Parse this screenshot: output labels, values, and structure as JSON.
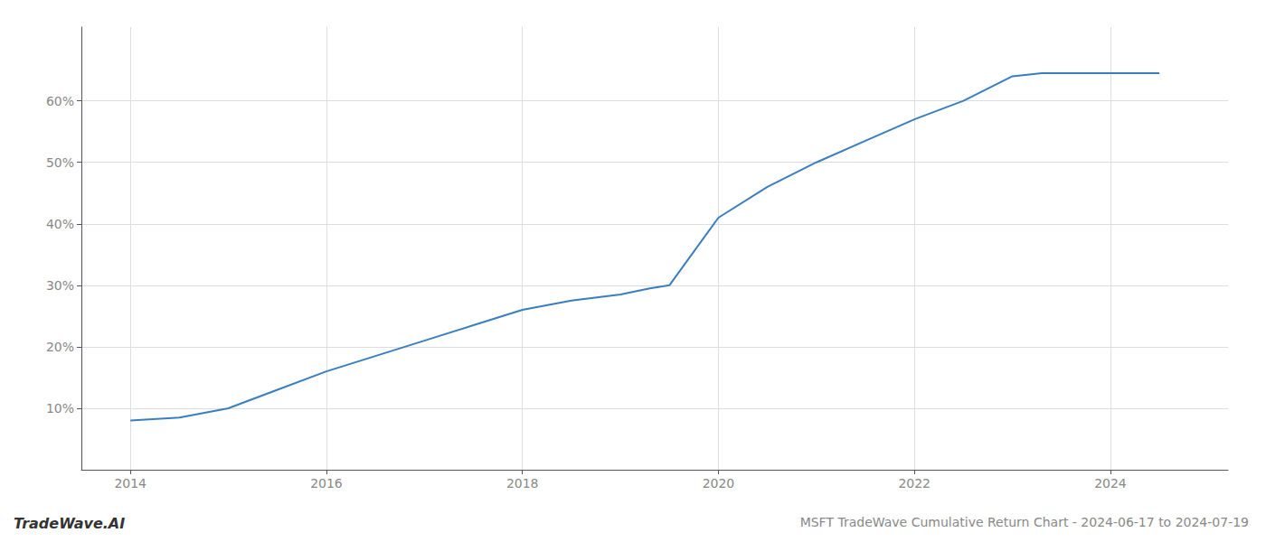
{
  "chart_data": {
    "type": "line",
    "title": "MSFT TradeWave Cumulative Return Chart - 2024-06-17 to 2024-07-19",
    "annotations": [
      "TradeWave.AI"
    ],
    "x": [
      2014.0,
      2014.5,
      2015.0,
      2015.5,
      2016.0,
      2016.5,
      2017.0,
      2017.5,
      2018.0,
      2018.5,
      2019.0,
      2019.3,
      2019.5,
      2020.0,
      2020.5,
      2021.0,
      2021.5,
      2022.0,
      2022.5,
      2023.0,
      2023.3,
      2024.0,
      2024.5
    ],
    "values": [
      8.0,
      8.5,
      10.0,
      13.0,
      16.0,
      18.5,
      21.0,
      23.5,
      26.0,
      27.5,
      28.5,
      29.5,
      30.0,
      41.0,
      46.0,
      50.0,
      53.5,
      57.0,
      60.0,
      64.0,
      64.5,
      64.5,
      64.5
    ],
    "color": "#3a7ebf",
    "xlim": [
      2013.5,
      2025.2
    ],
    "xticks": [
      2014,
      2016,
      2018,
      2020,
      2022,
      2024
    ],
    "ylim": [
      0,
      72
    ],
    "yticks": [
      {
        "value": 10,
        "label": "10%"
      },
      {
        "value": 20,
        "label": "20%"
      },
      {
        "value": 30,
        "label": "30%"
      },
      {
        "value": 40,
        "label": "40%"
      },
      {
        "value": 50,
        "label": "50%"
      },
      {
        "value": 60,
        "label": "60%"
      }
    ],
    "grid": true
  }
}
